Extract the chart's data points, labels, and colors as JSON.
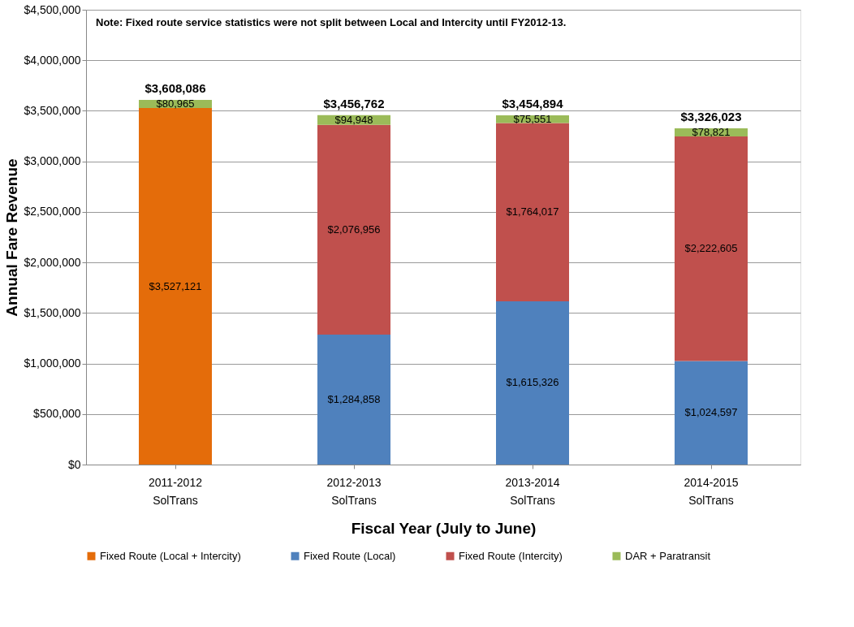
{
  "chart_data": {
    "type": "bar",
    "stacked": true,
    "xlabel": "Fiscal Year (July to June)",
    "ylabel": "Annual Fare Revenue",
    "categories": [
      "2011-2012",
      "2012-2013",
      "2013-2014",
      "2014-2015"
    ],
    "series": [
      {
        "name": "Fixed Route (Local + Intercity)",
        "color": "#e46c0a",
        "values": [
          3527121,
          null,
          null,
          null
        ],
        "value_labels": [
          "$3,527,121",
          null,
          null,
          null
        ]
      },
      {
        "name": "Fixed Route (Local)",
        "color": "#4f81bd",
        "values": [
          null,
          1284858,
          1615326,
          1024597
        ],
        "value_labels": [
          null,
          "$1,284,858",
          "$1,615,326",
          "$1,024,597"
        ]
      },
      {
        "name": "Fixed Route (Intercity)",
        "color": "#c0504d",
        "values": [
          null,
          2076956,
          1764017,
          2222605
        ],
        "value_labels": [
          null,
          "$2,076,956",
          "$1,764,017",
          "$2,222,605"
        ]
      },
      {
        "name": "DAR + Paratransit",
        "color": "#9bbb59",
        "values": [
          80965,
          94948,
          75551,
          78821
        ],
        "value_labels": [
          "$80,965",
          "$94,948",
          "$75,551",
          "$78,821"
        ]
      }
    ],
    "totals": [
      "$3,608,086",
      "$3,456,762",
      "$3,454,894",
      "$3,326,023"
    ],
    "ylim": [
      0,
      4500000
    ],
    "yticks": [
      {
        "value": 0,
        "label": "$0"
      },
      {
        "value": 500000,
        "label": "$500,000"
      },
      {
        "value": 1000000,
        "label": "$1,000,000"
      },
      {
        "value": 1500000,
        "label": "$1,500,000"
      },
      {
        "value": 2000000,
        "label": "$2,000,000"
      },
      {
        "value": 2500000,
        "label": "$2,500,000"
      },
      {
        "value": 3000000,
        "label": "$3,000,000"
      },
      {
        "value": 3500000,
        "label": "$3,500,000"
      },
      {
        "value": 4000000,
        "label": "$4,000,000"
      },
      {
        "value": 4500000,
        "label": "$4,500,000"
      }
    ],
    "grid": "y",
    "legend": "bottom",
    "annotations": [
      "Note: Fixed route service statistics were not split between Local and Intercity until FY2012-13.",
      "SolTrans",
      "SolTrans",
      "SolTrans",
      "SolTrans"
    ]
  }
}
